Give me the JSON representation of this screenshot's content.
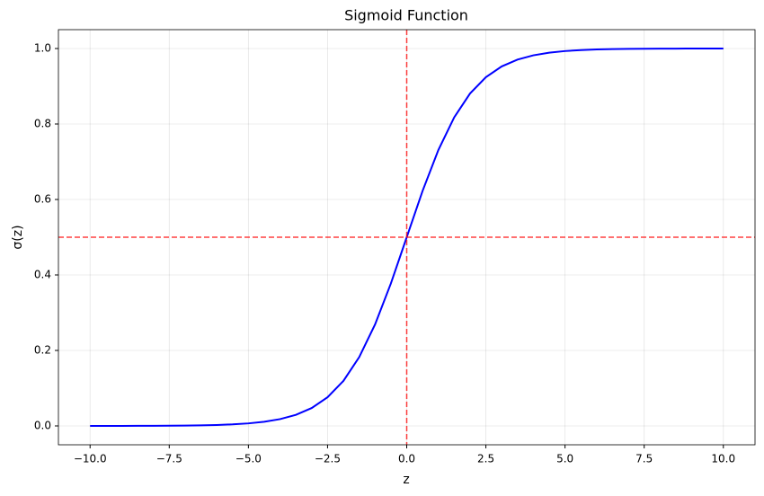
{
  "chart_data": {
    "type": "line",
    "title": "Sigmoid Function",
    "x_label": "z",
    "y_label": "σ(z)",
    "x": [
      -10,
      -9.5,
      -9,
      -8.5,
      -8,
      -7.5,
      -7,
      -6.5,
      -6,
      -5.5,
      -5,
      -4.5,
      -4,
      -3.5,
      -3,
      -2.5,
      -2,
      -1.5,
      -1,
      -0.5,
      0,
      0.5,
      1,
      1.5,
      2,
      2.5,
      3,
      3.5,
      4,
      4.5,
      5,
      5.5,
      6,
      6.5,
      7,
      7.5,
      8,
      8.5,
      9,
      9.5,
      10
    ],
    "series": [
      {
        "color": "#0000ff",
        "values": [
          0.0,
          0.0001,
          0.0001,
          0.0002,
          0.0003,
          0.0006,
          0.0009,
          0.0015,
          0.0025,
          0.0041,
          0.0067,
          0.011,
          0.018,
          0.0293,
          0.0474,
          0.0759,
          0.1192,
          0.1824,
          0.2689,
          0.3775,
          0.5,
          0.6225,
          0.7311,
          0.8176,
          0.8808,
          0.9241,
          0.9526,
          0.9707,
          0.982,
          0.989,
          0.9933,
          0.9959,
          0.9975,
          0.9985,
          0.9991,
          0.9994,
          0.9997,
          0.9998,
          0.9999,
          0.9999,
          1.0
        ]
      }
    ],
    "reference_lines": [
      {
        "axis": "x",
        "value": 0,
        "color": "#ff0000"
      },
      {
        "axis": "y",
        "value": 0.5,
        "color": "#ff0000"
      }
    ],
    "xlim": [
      -11,
      11
    ],
    "ylim": [
      -0.05,
      1.05
    ],
    "xticks": [
      {
        "value": -10,
        "label": "−10.0"
      },
      {
        "value": -7.5,
        "label": "−7.5"
      },
      {
        "value": -5,
        "label": "−5.0"
      },
      {
        "value": -2.5,
        "label": "−2.5"
      },
      {
        "value": 0,
        "label": "0.0"
      },
      2.5,
      {
        "value": 5,
        "label": "5.0"
      },
      7.5,
      {
        "value": 10,
        "label": "10.0"
      }
    ],
    "yticks": [
      {
        "value": 0,
        "label": "0.0"
      },
      0.2,
      0.4,
      0.6,
      0.8,
      {
        "value": 1,
        "label": "1.0"
      }
    ],
    "grid": true
  }
}
